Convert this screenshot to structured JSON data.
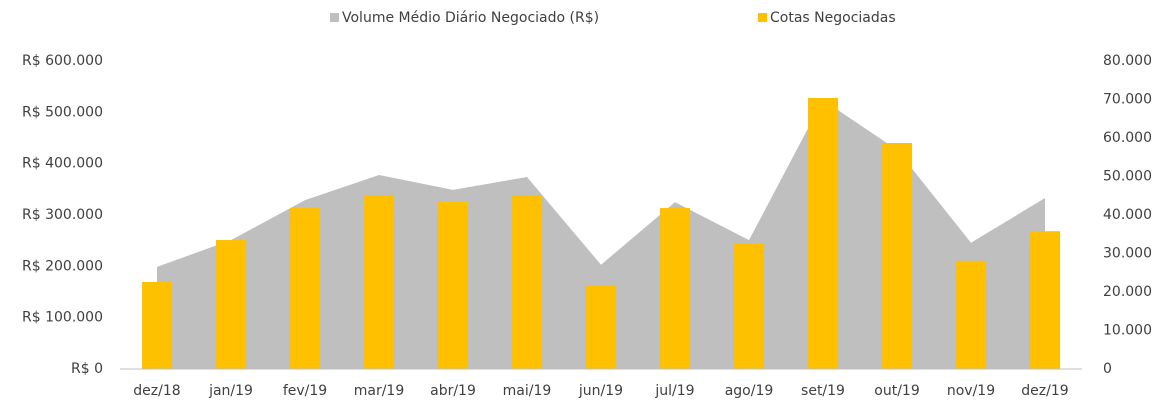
{
  "chart_data": {
    "type": "combo",
    "categories": [
      "dez/18",
      "jan/19",
      "fev/19",
      "mar/19",
      "abr/19",
      "mai/19",
      "jun/19",
      "jul/19",
      "ago/19",
      "set/19",
      "out/19",
      "nov/19",
      "dez/19"
    ],
    "series": [
      {
        "name": "Volume Médio Diário Negociado (R$)",
        "type": "area",
        "color": "#bfbfbf",
        "axis": "y",
        "values": [
          199000,
          251000,
          329000,
          378000,
          349000,
          374000,
          203000,
          325000,
          251000,
          524000,
          427000,
          246000,
          333000
        ]
      },
      {
        "name": "Cotas Negociadas",
        "type": "bar",
        "color": "#ffc000",
        "axis": "y2",
        "values": [
          22600,
          33500,
          41800,
          45200,
          43400,
          45200,
          21600,
          41800,
          32700,
          70400,
          58700,
          28100,
          35800
        ]
      }
    ],
    "ylim": [
      0,
      600000
    ],
    "yticks": [
      {
        "value": 0,
        "label": "R$ 0"
      },
      {
        "value": 100000,
        "label": "R$ 100.000"
      },
      {
        "value": 200000,
        "label": "R$ 200.000"
      },
      {
        "value": 300000,
        "label": "R$ 300.000"
      },
      {
        "value": 400000,
        "label": "R$ 400.000"
      },
      {
        "value": 500000,
        "label": "R$ 500.000"
      },
      {
        "value": 600000,
        "label": "R$ 600.000"
      }
    ],
    "y2lim": [
      0,
      80000
    ],
    "y2ticks": [
      0,
      {
        "value": 10000,
        "label": "10.000"
      },
      {
        "value": 20000,
        "label": "20.000"
      },
      {
        "value": 30000,
        "label": "30.000"
      },
      {
        "value": 40000,
        "label": "40.000"
      },
      {
        "value": 50000,
        "label": "50.000"
      },
      {
        "value": 60000,
        "label": "60.000"
      },
      {
        "value": 70000,
        "label": "70.000"
      },
      {
        "value": 80000,
        "label": "80.000"
      }
    ],
    "legend": "top"
  }
}
